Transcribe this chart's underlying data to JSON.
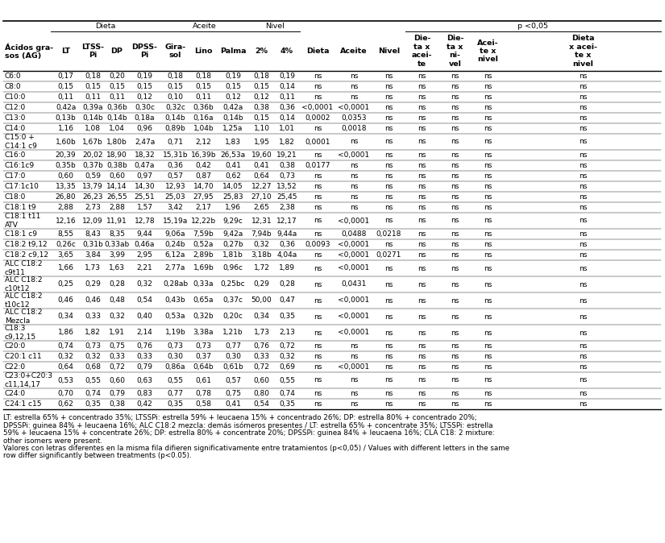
{
  "rows": [
    [
      "C6:0",
      "0,17",
      "0,18",
      "0,20",
      "0,19",
      "0,18",
      "0,18",
      "0,19",
      "0,18",
      "0,19",
      "ns",
      "ns",
      "ns",
      "ns",
      "ns",
      "ns",
      "ns"
    ],
    [
      "C8:0",
      "0,15",
      "0,15",
      "0,15",
      "0,15",
      "0,15",
      "0,15",
      "0,15",
      "0,15",
      "0,14",
      "ns",
      "ns",
      "ns",
      "ns",
      "ns",
      "ns",
      "ns"
    ],
    [
      "C10:0",
      "0,11",
      "0,11",
      "0,11",
      "0,12",
      "0,10",
      "0,11",
      "0,12",
      "0,12",
      "0,11",
      "ns",
      "ns",
      "ns",
      "ns",
      "ns",
      "ns",
      "ns"
    ],
    [
      "C12:0",
      "0,42a",
      "0,39a",
      "0,36b",
      "0,30c",
      "0,32c",
      "0,36b",
      "0,42a",
      "0,38",
      "0,36",
      "<0,0001",
      "<0,0001",
      "ns",
      "ns",
      "ns",
      "ns",
      "ns"
    ],
    [
      "C13:0",
      "0,13b",
      "0,14b",
      "0,14b",
      "0,18a",
      "0,14b",
      "0,16a",
      "0,14b",
      "0,15",
      "0,14",
      "0,0002",
      "0,0353",
      "ns",
      "ns",
      "ns",
      "ns",
      "ns"
    ],
    [
      "C14:0",
      "1,16",
      "1,08",
      "1,04",
      "0,96",
      "0,89b",
      "1,04b",
      "1,25a",
      "1,10",
      "1,01",
      "ns",
      "0,0018",
      "ns",
      "ns",
      "ns",
      "ns",
      "ns"
    ],
    [
      "C15:0 +\nC14:1 c9",
      "1,60b",
      "1,67b",
      "1,80b",
      "2,47a",
      "0,71",
      "2,12",
      "1,83",
      "1,95",
      "1,82",
      "0,0001",
      "ns",
      "ns",
      "ns",
      "ns",
      "ns",
      "ns"
    ],
    [
      "C16:0",
      "20,39",
      "20,02",
      "18,90",
      "18,32",
      "15,31b",
      "16,39b",
      "26,53a",
      "19,60",
      "19,21",
      "ns",
      "<0,0001",
      "ns",
      "ns",
      "ns",
      "ns",
      "ns"
    ],
    [
      "C16:1c9",
      "0,35b",
      "0,37b",
      "0,38b",
      "0,47a",
      "0,36",
      "0,42",
      "0,41",
      "0,41",
      "0,38",
      "0,0177",
      "ns",
      "ns",
      "ns",
      "ns",
      "ns",
      "ns"
    ],
    [
      "C17:0",
      "0,60",
      "0,59",
      "0,60",
      "0,97",
      "0,57",
      "0,87",
      "0,62",
      "0,64",
      "0,73",
      "ns",
      "ns",
      "ns",
      "ns",
      "ns",
      "ns",
      "ns"
    ],
    [
      "C17:1c10",
      "13,35",
      "13,79",
      "14,14",
      "14,30",
      "12,93",
      "14,70",
      "14,05",
      "12,27",
      "13,52",
      "ns",
      "ns",
      "ns",
      "ns",
      "ns",
      "ns",
      "ns"
    ],
    [
      "C18:0",
      "26,80",
      "26,23",
      "26,55",
      "25,51",
      "25,03",
      "27,95",
      "25,83",
      "27,10",
      "25,45",
      "ns",
      "ns",
      "ns",
      "ns",
      "ns",
      "ns",
      "ns"
    ],
    [
      "C18:1 t9",
      "2,88",
      "2,73",
      "2,88",
      "1,57",
      "3,42",
      "2,17",
      "1,96",
      "2,65",
      "2,38",
      "ns",
      "ns",
      "ns",
      "ns",
      "ns",
      "ns",
      "ns"
    ],
    [
      "C18:1 t11\nATV",
      "12,16",
      "12,09",
      "11,91",
      "12,78",
      "15,19a",
      "12,22b",
      "9,29c",
      "12,31",
      "12,17",
      "ns",
      "<0,0001",
      "ns",
      "ns",
      "ns",
      "ns",
      "ns"
    ],
    [
      "C18:1 c9",
      "8,55",
      "8,43",
      "8,35",
      "9,44",
      "9,06a",
      "7,59b",
      "9,42a",
      "7,94b",
      "9,44a",
      "ns",
      "0,0488",
      "0,0218",
      "ns",
      "ns",
      "ns",
      "ns"
    ],
    [
      "C18:2 t9,12",
      "0,26c",
      "0,31b",
      "0,33ab",
      "0,46a",
      "0,24b",
      "0,52a",
      "0,27b",
      "0,32",
      "0,36",
      "0,0093",
      "<0,0001",
      "ns",
      "ns",
      "ns",
      "ns",
      "ns"
    ],
    [
      "C18:2 c9,12",
      "3,65",
      "3,84",
      "3,99",
      "2,95",
      "6,12a",
      "2,89b",
      "1,81b",
      "3,18b",
      "4,04a",
      "ns",
      "<0,0001",
      "0,0271",
      "ns",
      "ns",
      "ns",
      "ns"
    ],
    [
      "ALC C18:2\nc9t11",
      "1,66",
      "1,73",
      "1,63",
      "2,21",
      "2,77a",
      "1,69b",
      "0,96c",
      "1,72",
      "1,89",
      "ns",
      "<0,0001",
      "ns",
      "ns",
      "ns",
      "ns",
      "ns"
    ],
    [
      "ALC C18:2\nc10t12",
      "0,25",
      "0,29",
      "0,28",
      "0,32",
      "0,28ab",
      "0,33a",
      "0,25bc",
      "0,29",
      "0,28",
      "ns",
      "0,0431",
      "ns",
      "ns",
      "ns",
      "ns",
      "ns"
    ],
    [
      "ALC C18:2\nt10c12",
      "0,46",
      "0,46",
      "0,48",
      "0,54",
      "0,43b",
      "0,65a",
      "0,37c",
      "50,00",
      "0,47",
      "ns",
      "<0,0001",
      "ns",
      "ns",
      "ns",
      "ns",
      "ns"
    ],
    [
      "ALC C18:2\nMezcla",
      "0,34",
      "0,33",
      "0,32",
      "0,40",
      "0,53a",
      "0,32b",
      "0,20c",
      "0,34",
      "0,35",
      "ns",
      "<0,0001",
      "ns",
      "ns",
      "ns",
      "ns",
      "ns"
    ],
    [
      "C18:3\nc9,12,15",
      "1,86",
      "1,82",
      "1,91",
      "2,14",
      "1,19b",
      "3,38a",
      "1,21b",
      "1,73",
      "2,13",
      "ns",
      "<0,0001",
      "ns",
      "ns",
      "ns",
      "ns",
      "ns"
    ],
    [
      "C20:0",
      "0,74",
      "0,73",
      "0,75",
      "0,76",
      "0,73",
      "0,73",
      "0,77",
      "0,76",
      "0,72",
      "ns",
      "ns",
      "ns",
      "ns",
      "ns",
      "ns",
      "ns"
    ],
    [
      "C20:1 c11",
      "0,32",
      "0,32",
      "0,33",
      "0,33",
      "0,30",
      "0,37",
      "0,30",
      "0,33",
      "0,32",
      "ns",
      "ns",
      "ns",
      "ns",
      "ns",
      "ns",
      "ns"
    ],
    [
      "C22:0",
      "0,64",
      "0,68",
      "0,72",
      "0,79",
      "0,86a",
      "0,64b",
      "0,61b",
      "0,72",
      "0,69",
      "ns",
      "<0,0001",
      "ns",
      "ns",
      "ns",
      "ns",
      "ns"
    ],
    [
      "C23:0+C20:3\nc11,14,17",
      "0,53",
      "0,55",
      "0,60",
      "0,63",
      "0,55",
      "0,61",
      "0,57",
      "0,60",
      "0,55",
      "ns",
      "ns",
      "ns",
      "ns",
      "ns",
      "ns",
      "ns"
    ],
    [
      "C24:0",
      "0,70",
      "0,74",
      "0,79",
      "0,83",
      "0,77",
      "0,78",
      "0,75",
      "0,80",
      "0,74",
      "ns",
      "ns",
      "ns",
      "ns",
      "ns",
      "ns",
      "ns"
    ],
    [
      "C24:1 c15",
      "0,62",
      "0,35",
      "0,38",
      "0,42",
      "0,35",
      "0,58",
      "0,41",
      "0,54",
      "0,35",
      "ns",
      "ns",
      "ns",
      "ns",
      "ns",
      "ns",
      "ns"
    ]
  ],
  "multiline_rows": [
    6,
    13,
    17,
    18,
    19,
    20,
    21,
    25
  ],
  "col_labels": [
    "Acidos gra-\nsos (AG)",
    "LT",
    "LTSS-\nPi",
    "DP",
    "DPSS-\nPi",
    "Gira-\nsol",
    "Lino",
    "Palma",
    "2%",
    "4%",
    "Dieta",
    "Aceite",
    "Nivel",
    "Die-\nta x\nacei-\nte",
    "Die-\nta x\nni-\nvel",
    "Acei-\nte x\nnivel",
    "Dieta\nx acei-\nte x\nnivel"
  ],
  "footnote1": "LT: estrella 65% + concentrado 35%; LTSSPi: estrella 59% + leucaena 15% + concentrado 26%; DP: estrella 80% + concentrado 20%;",
  "footnote2": "DPSSPi: guinea 84% + leucaena 16%; ALC C18:2 mezcla: demás isómeros presentes / LT: estrella 65% + concentrate 35%; LTSSPi: estrella",
  "footnote3": "59% + leucaena 15% + concentrate 26%; DP: estrella 80% + concentrate 20%; DPSSPi: guinea 84% + leucaena 16%; CLA C18: 2 mixture:",
  "footnote4": "other isomers were present.",
  "footnote5": "Valores con letras diferentes en la misma fila difieren significativamente entre tratamientos (p<0,05) / Values with different letters in the same",
  "footnote6": "row differ significantly between treatments (p<0.05)."
}
